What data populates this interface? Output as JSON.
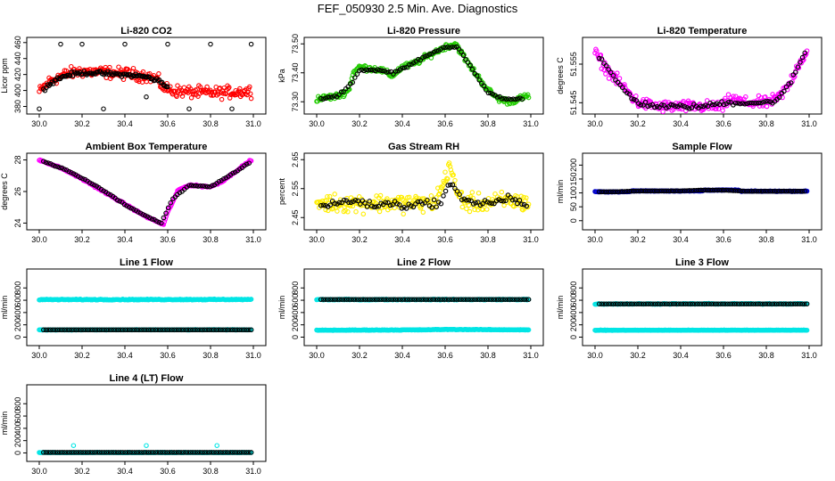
{
  "title": "FEF_050930  2.5 Min. Ave. Diagnostics",
  "chart_data": [
    {
      "key": "co2",
      "type": "scatter",
      "title": "Li-820 CO2",
      "ylabel": "Licor ppm",
      "xlim": [
        30.0,
        31.0
      ],
      "ylim": [
        375,
        462
      ],
      "yticks": [
        "380",
        "400",
        "420",
        "440",
        "460"
      ],
      "xticks": [
        "30.0",
        "30.2",
        "30.4",
        "30.6",
        "30.8",
        "31.0"
      ],
      "series": [
        {
          "name": "raw",
          "color": "#ff0000",
          "x": [
            30.0,
            30.05,
            30.1,
            30.15,
            30.2,
            30.25,
            30.3,
            30.35,
            30.4,
            30.45,
            30.5,
            30.55,
            30.58,
            30.62,
            30.7,
            30.8,
            30.9,
            30.99
          ],
          "y": [
            398,
            412,
            418,
            422,
            424,
            423,
            423,
            422,
            421,
            420,
            418,
            414,
            404,
            400,
            398,
            397,
            398,
            399
          ],
          "spread": 6
        },
        {
          "name": "avg",
          "color": "#000000",
          "x": [
            30.02,
            30.08,
            30.14,
            30.2,
            30.26,
            30.32,
            30.38,
            30.44,
            30.5,
            30.56,
            30.6
          ],
          "y": [
            402,
            414,
            420,
            422,
            422,
            421,
            420,
            419,
            417,
            412,
            404
          ],
          "spread": 2
        },
        {
          "name": "flags",
          "color": "#000000",
          "x": [
            30.0,
            30.1,
            30.2,
            30.3,
            30.4,
            30.5,
            30.6,
            30.7,
            30.8,
            30.9,
            30.99
          ],
          "y": [
            377,
            458,
            458,
            377,
            458,
            392,
            458,
            377,
            458,
            377,
            458
          ],
          "spread": 0
        }
      ]
    },
    {
      "key": "pressure",
      "type": "scatter",
      "title": "Li-820 Pressure",
      "ylabel": "kPa",
      "xlim": [
        30.0,
        31.0
      ],
      "ylim": [
        73.27,
        73.51
      ],
      "yticks": [
        "73.30",
        "73.40",
        "73.50"
      ],
      "xticks": [
        "30.0",
        "30.2",
        "30.4",
        "30.6",
        "30.8",
        "31.0"
      ],
      "series": [
        {
          "name": "raw",
          "color": "#22cc00",
          "x": [
            30.0,
            30.1,
            30.15,
            30.17,
            30.2,
            30.3,
            30.35,
            30.4,
            30.45,
            30.5,
            30.55,
            30.6,
            30.65,
            30.7,
            30.75,
            30.8,
            30.85,
            30.9,
            30.99
          ],
          "y": [
            73.31,
            73.32,
            73.34,
            73.4,
            73.42,
            73.41,
            73.39,
            73.42,
            73.43,
            73.45,
            73.47,
            73.49,
            73.5,
            73.44,
            73.39,
            73.34,
            73.31,
            73.3,
            73.32
          ],
          "spread": 0.008
        },
        {
          "name": "avg",
          "color": "#000000",
          "x": [
            30.02,
            30.1,
            30.16,
            30.2,
            30.28,
            30.36,
            30.44,
            30.52,
            30.6,
            30.66,
            30.72,
            30.8,
            30.88,
            30.96
          ],
          "y": [
            73.31,
            73.32,
            73.36,
            73.41,
            73.41,
            73.4,
            73.43,
            73.46,
            73.49,
            73.49,
            73.42,
            73.33,
            73.31,
            73.31
          ],
          "spread": 0.003
        }
      ]
    },
    {
      "key": "temp",
      "type": "scatter",
      "title": "Li-820 Temperature",
      "ylabel": "degrees C",
      "xlim": [
        30.0,
        31.0
      ],
      "ylim": [
        51.543,
        51.561
      ],
      "yticks": [
        "51.545",
        "51.555"
      ],
      "xticks": [
        "30.0",
        "30.2",
        "30.4",
        "30.6",
        "30.8",
        "31.0"
      ],
      "series": [
        {
          "name": "raw",
          "color": "#ff00ff",
          "x": [
            30.0,
            30.05,
            30.1,
            30.15,
            30.2,
            30.3,
            30.5,
            30.6,
            30.63,
            30.7,
            30.8,
            30.85,
            30.9,
            30.95,
            30.99
          ],
          "y": [
            51.558,
            51.554,
            51.551,
            51.548,
            51.545,
            51.544,
            51.544,
            51.544,
            51.546,
            51.545,
            51.545,
            51.546,
            51.549,
            51.555,
            51.558
          ],
          "spread": 0.0012
        },
        {
          "name": "avg",
          "color": "#000000",
          "x": [
            30.02,
            30.08,
            30.14,
            30.2,
            30.3,
            30.4,
            30.5,
            30.6,
            30.7,
            30.8,
            30.86,
            30.92,
            30.98
          ],
          "y": [
            51.557,
            51.552,
            51.548,
            51.545,
            51.544,
            51.544,
            51.544,
            51.545,
            51.545,
            51.545,
            51.546,
            51.551,
            51.558
          ],
          "spread": 0.0005
        }
      ]
    },
    {
      "key": "box",
      "type": "scatter",
      "title": "Ambient Box Temperature",
      "ylabel": "degrees C",
      "xlim": [
        30.0,
        31.0
      ],
      "ylim": [
        23.8,
        28.2
      ],
      "yticks": [
        "24",
        "26",
        "28"
      ],
      "xticks": [
        "30.0",
        "30.2",
        "30.4",
        "30.6",
        "30.8",
        "31.0"
      ],
      "series": [
        {
          "name": "raw",
          "color": "#ff00ff",
          "x": [
            30.0,
            30.1,
            30.2,
            30.3,
            30.4,
            30.5,
            30.55,
            30.58,
            30.6,
            30.65,
            30.7,
            30.8,
            30.85,
            30.9,
            30.95,
            30.99
          ],
          "y": [
            28.0,
            27.5,
            26.8,
            26.0,
            25.2,
            24.4,
            24.1,
            23.9,
            24.7,
            26.1,
            26.4,
            26.3,
            26.6,
            27.1,
            27.6,
            28.0
          ],
          "spread": 0.04
        },
        {
          "name": "avg",
          "color": "#000000",
          "x": [
            30.02,
            30.12,
            30.22,
            30.32,
            30.42,
            30.52,
            30.57,
            30.62,
            30.7,
            30.8,
            30.9,
            30.98
          ],
          "y": [
            27.9,
            27.4,
            26.7,
            25.9,
            25.0,
            24.3,
            24.0,
            25.5,
            26.4,
            26.3,
            27.1,
            27.8
          ],
          "spread": 0.02
        }
      ]
    },
    {
      "key": "rh",
      "type": "scatter",
      "title": "Gas Stream RH",
      "ylabel": "percent",
      "xlim": [
        30.0,
        31.0
      ],
      "ylim": [
        2.42,
        2.66
      ],
      "yticks": [
        "2.45",
        "2.55",
        "2.65"
      ],
      "xticks": [
        "30.0",
        "30.2",
        "30.4",
        "30.6",
        "30.8",
        "31.0"
      ],
      "series": [
        {
          "name": "raw",
          "color": "#ffee00",
          "x": [
            30.0,
            30.1,
            30.2,
            30.3,
            30.4,
            30.5,
            30.55,
            30.6,
            30.62,
            30.65,
            30.7,
            30.8,
            30.9,
            30.99
          ],
          "y": [
            2.5,
            2.5,
            2.5,
            2.5,
            2.5,
            2.5,
            2.5,
            2.58,
            2.64,
            2.54,
            2.5,
            2.5,
            2.51,
            2.5
          ],
          "spread": 0.025
        },
        {
          "name": "avg",
          "color": "#000000",
          "x": [
            30.02,
            30.1,
            30.18,
            30.26,
            30.34,
            30.42,
            30.5,
            30.58,
            30.62,
            30.66,
            30.74,
            30.82,
            30.9,
            30.98
          ],
          "y": [
            2.49,
            2.5,
            2.51,
            2.49,
            2.5,
            2.49,
            2.5,
            2.5,
            2.57,
            2.53,
            2.5,
            2.5,
            2.52,
            2.49
          ],
          "spread": 0.01
        }
      ]
    },
    {
      "key": "sample",
      "type": "scatter",
      "title": "Sample Flow",
      "ylabel": "ml/min",
      "xlim": [
        30.0,
        31.0
      ],
      "ylim": [
        -20,
        230
      ],
      "yticks": [
        "0",
        "50",
        "100",
        "150",
        "200"
      ],
      "xticks": [
        "30.0",
        "30.2",
        "30.4",
        "30.6",
        "30.8",
        "31.0"
      ],
      "series": [
        {
          "name": "raw",
          "color": "#0000cc",
          "x": [
            30.0,
            30.16,
            30.17,
            30.5,
            30.51,
            30.67,
            30.68,
            30.99
          ],
          "y": [
            104,
            104,
            107,
            107,
            110,
            110,
            106,
            106
          ],
          "spread": 1.0
        },
        {
          "name": "avg",
          "color": "#000000",
          "x": [
            30.02,
            30.1,
            30.2,
            30.3,
            30.4,
            30.5,
            30.6,
            30.7,
            30.8,
            30.9,
            30.98
          ],
          "y": [
            104,
            104,
            107,
            107,
            107,
            110,
            110,
            106,
            106,
            106,
            106
          ],
          "spread": 0.3
        }
      ]
    },
    {
      "key": "line1",
      "type": "scatter",
      "title": "Line 1 Flow",
      "ylabel": "ml/min",
      "xlim": [
        30.0,
        31.0
      ],
      "ylim": [
        -80,
        1050
      ],
      "yticks": [
        "0",
        "200",
        "400",
        "600",
        "800"
      ],
      "xticks": [
        "30.0",
        "30.2",
        "30.4",
        "30.6",
        "30.8",
        "31.0"
      ],
      "series": [
        {
          "name": "line1",
          "color": "#00e5e5",
          "x": [
            30.0,
            30.99
          ],
          "y": [
            610,
            612
          ],
          "spread": 6
        },
        {
          "name": "sample",
          "color": "#00e5e5",
          "x": [
            30.0,
            30.99
          ],
          "y": [
            118,
            120
          ],
          "spread": 3
        },
        {
          "name": "avg",
          "color": "#000000",
          "x": [
            30.02,
            30.99
          ],
          "y": [
            118,
            118
          ],
          "spread": 0
        }
      ]
    },
    {
      "key": "line2",
      "type": "scatter",
      "title": "Line 2 Flow",
      "ylabel": "ml/min",
      "xlim": [
        30.0,
        31.0
      ],
      "ylim": [
        -80,
        1050
      ],
      "yticks": [
        "0",
        "200",
        "400",
        "600",
        "800"
      ],
      "xticks": [
        "30.0",
        "30.2",
        "30.4",
        "30.6",
        "30.8",
        "31.0"
      ],
      "series": [
        {
          "name": "line2",
          "color": "#00e5e5",
          "x": [
            30.0,
            30.99
          ],
          "y": [
            610,
            612
          ],
          "spread": 6
        },
        {
          "name": "sample",
          "color": "#00e5e5",
          "x": [
            30.0,
            30.5,
            30.6,
            30.99
          ],
          "y": [
            112,
            118,
            125,
            118
          ],
          "spread": 4
        },
        {
          "name": "avg",
          "color": "#000000",
          "x": [
            30.02,
            30.99
          ],
          "y": [
            612,
            612
          ],
          "spread": 0
        }
      ]
    },
    {
      "key": "line3",
      "type": "scatter",
      "title": "Line 3 Flow",
      "ylabel": "ml/min",
      "xlim": [
        30.0,
        31.0
      ],
      "ylim": [
        -80,
        1050
      ],
      "yticks": [
        "0",
        "200",
        "400",
        "600",
        "800"
      ],
      "xticks": [
        "30.0",
        "30.2",
        "30.4",
        "30.6",
        "30.8",
        "31.0"
      ],
      "series": [
        {
          "name": "line3",
          "color": "#00e5e5",
          "x": [
            30.0,
            30.99
          ],
          "y": [
            540,
            542
          ],
          "spread": 6
        },
        {
          "name": "sample",
          "color": "#00e5e5",
          "x": [
            30.0,
            30.99
          ],
          "y": [
            112,
            114
          ],
          "spread": 3
        },
        {
          "name": "avg",
          "color": "#000000",
          "x": [
            30.02,
            30.99
          ],
          "y": [
            540,
            540
          ],
          "spread": 0
        }
      ]
    },
    {
      "key": "line4",
      "type": "scatter",
      "title": "Line 4 (LT) Flow",
      "ylabel": "ml/min",
      "xlim": [
        30.0,
        31.0
      ],
      "ylim": [
        -80,
        1050
      ],
      "yticks": [
        "0",
        "200",
        "400",
        "600",
        "800"
      ],
      "xticks": [
        "30.0",
        "30.2",
        "30.4",
        "30.6",
        "30.8",
        "31.0"
      ],
      "series": [
        {
          "name": "line4",
          "color": "#00e5e5",
          "x": [
            30.0,
            30.99
          ],
          "y": [
            6,
            6
          ],
          "spread": 3
        },
        {
          "name": "spikes",
          "color": "#00e5e5",
          "x": [
            30.16,
            30.5,
            30.83
          ],
          "y": [
            120,
            120,
            120
          ],
          "spread": 0
        },
        {
          "name": "avg",
          "color": "#000000",
          "x": [
            30.02,
            30.99
          ],
          "y": [
            8,
            8
          ],
          "spread": 0
        }
      ]
    }
  ]
}
